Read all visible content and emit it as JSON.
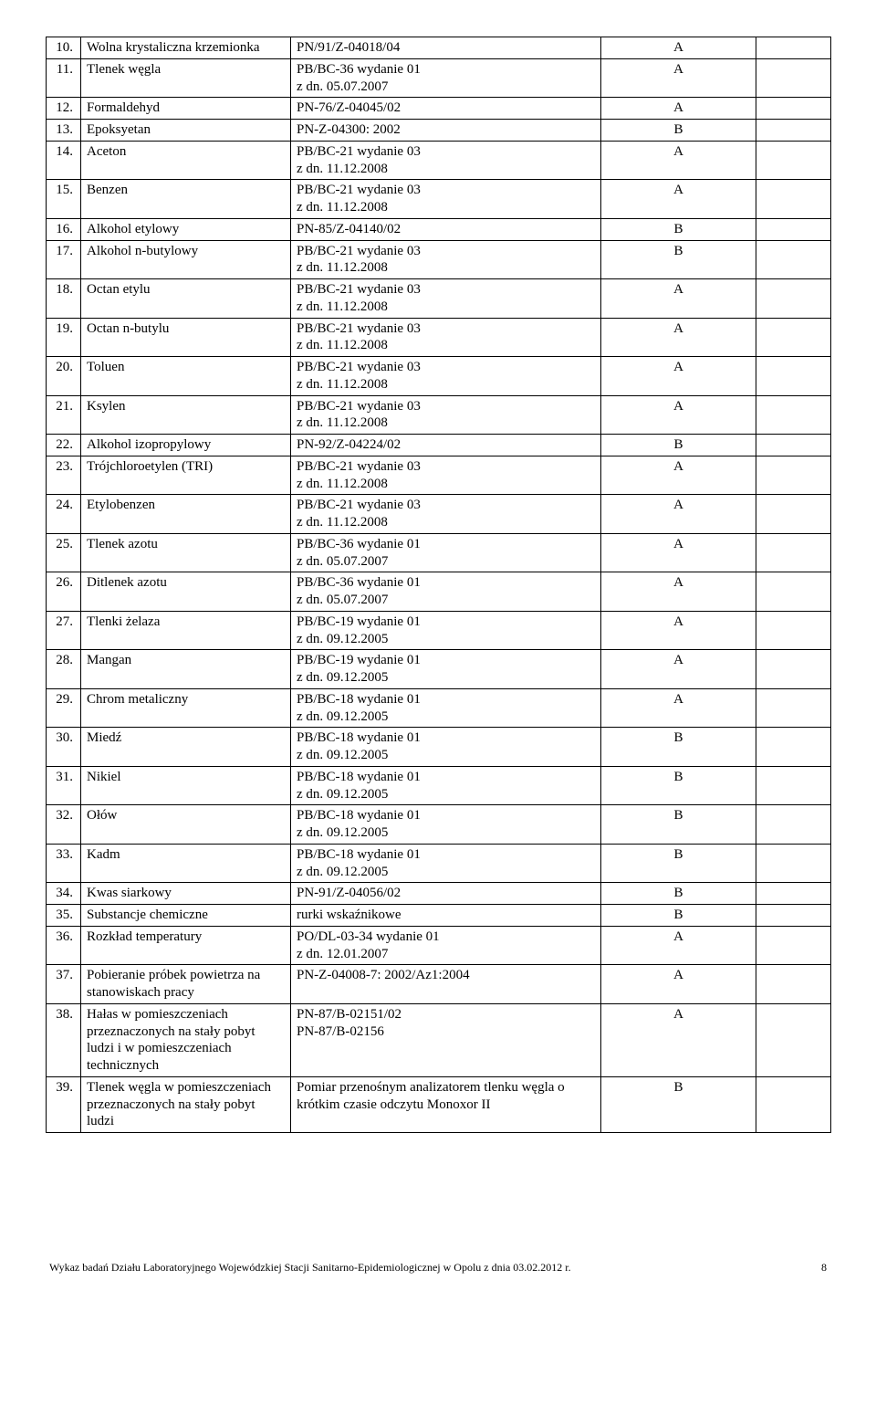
{
  "rows": [
    {
      "num": "10.",
      "name": "Wolna krystaliczna krzemionka",
      "method": "PN/91/Z-04018/04",
      "flag": "A"
    },
    {
      "num": "11.",
      "name": "Tlenek węgla",
      "method": "PB/BC-36 wydanie 01\nz dn. 05.07.2007",
      "flag": "A"
    },
    {
      "num": "12.",
      "name": "Formaldehyd",
      "method": "PN-76/Z-04045/02",
      "flag": "A"
    },
    {
      "num": "13.",
      "name": "Epoksyetan",
      "method": "PN-Z-04300: 2002",
      "flag": "B"
    },
    {
      "num": "14.",
      "name": "Aceton",
      "method": "PB/BC-21 wydanie 03\nz dn. 11.12.2008",
      "flag": "A"
    },
    {
      "num": "15.",
      "name": "Benzen",
      "method": "PB/BC-21 wydanie 03\nz dn. 11.12.2008",
      "flag": "A"
    },
    {
      "num": "16.",
      "name": "Alkohol etylowy",
      "method": "PN-85/Z-04140/02",
      "flag": "B"
    },
    {
      "num": "17.",
      "name": "Alkohol n-butylowy",
      "method": "PB/BC-21 wydanie 03\nz dn. 11.12.2008",
      "flag": "B"
    },
    {
      "num": "18.",
      "name": "Octan etylu",
      "method": "PB/BC-21 wydanie 03\nz dn. 11.12.2008",
      "flag": "A"
    },
    {
      "num": "19.",
      "name": "Octan n-butylu",
      "method": "PB/BC-21 wydanie 03\nz dn. 11.12.2008",
      "flag": "A"
    },
    {
      "num": "20.",
      "name": "Toluen",
      "method": "PB/BC-21 wydanie 03\nz dn. 11.12.2008",
      "flag": "A"
    },
    {
      "num": "21.",
      "name": "Ksylen",
      "method": "PB/BC-21 wydanie 03\nz dn. 11.12.2008",
      "flag": "A"
    },
    {
      "num": "22.",
      "name": "Alkohol izopropylowy",
      "method": "PN-92/Z-04224/02",
      "flag": "B"
    },
    {
      "num": "23.",
      "name": "Trójchloroetylen (TRI)",
      "method": "PB/BC-21 wydanie 03\nz dn. 11.12.2008",
      "flag": "A"
    },
    {
      "num": "24.",
      "name": "Etylobenzen",
      "method": "PB/BC-21 wydanie 03\nz dn. 11.12.2008",
      "flag": "A"
    },
    {
      "num": "25.",
      "name": "Tlenek azotu",
      "method": "PB/BC-36 wydanie 01\nz dn. 05.07.2007",
      "flag": "A"
    },
    {
      "num": "26.",
      "name": "Ditlenek azotu",
      "method": "PB/BC-36 wydanie 01\nz dn. 05.07.2007",
      "flag": "A"
    },
    {
      "num": "27.",
      "name": "Tlenki żelaza",
      "method": "PB/BC-19 wydanie 01\nz dn. 09.12.2005",
      "flag": "A"
    },
    {
      "num": "28.",
      "name": "Mangan",
      "method": "PB/BC-19 wydanie 01\nz dn. 09.12.2005",
      "flag": "A"
    },
    {
      "num": "29.",
      "name": "Chrom metaliczny",
      "method": "PB/BC-18 wydanie 01\nz dn. 09.12.2005",
      "flag": "A"
    },
    {
      "num": "30.",
      "name": "Miedź",
      "method": "PB/BC-18 wydanie 01\nz dn. 09.12.2005",
      "flag": "B"
    },
    {
      "num": "31.",
      "name": "Nikiel",
      "method": "PB/BC-18 wydanie 01\nz dn. 09.12.2005",
      "flag": "B"
    },
    {
      "num": "32.",
      "name": "Ołów",
      "method": "PB/BC-18 wydanie 01\nz dn. 09.12.2005",
      "flag": "B"
    },
    {
      "num": "33.",
      "name": "Kadm",
      "method": "PB/BC-18 wydanie 01\nz dn. 09.12.2005",
      "flag": "B"
    },
    {
      "num": "34.",
      "name": "Kwas siarkowy",
      "method": "PN-91/Z-04056/02",
      "flag": "B"
    },
    {
      "num": "35.",
      "name": "Substancje chemiczne",
      "method": " rurki wskaźnikowe",
      "flag": "B"
    },
    {
      "num": "36.",
      "name": "Rozkład temperatury",
      "method": "PO/DL-03-34 wydanie 01\nz dn. 12.01.2007",
      "flag": "A"
    },
    {
      "num": "37.",
      "name": "Pobieranie próbek powietrza na stanowiskach pracy",
      "method": "PN-Z-04008-7: 2002/Az1:2004",
      "flag": "A"
    },
    {
      "num": "38.",
      "name": "Hałas w pomieszczeniach przeznaczonych na stały pobyt ludzi i w pomieszczeniach technicznych",
      "method": "PN-87/B-02151/02\nPN-87/B-02156",
      "flag": "A"
    },
    {
      "num": "39.",
      "name": "Tlenek węgla w pomieszczeniach przeznaczonych na stały pobyt ludzi",
      "method": "Pomiar przenośnym analizatorem tlenku węgla o krótkim czasie odczytu Monoxor II",
      "flag": "B"
    }
  ],
  "footer": {
    "text": "Wykaz badań Działu Laboratoryjnego Wojewódzkiej Stacji Sanitarno-Epidemiologicznej w Opolu z dnia 03.02.2012 r.",
    "page": "8"
  }
}
